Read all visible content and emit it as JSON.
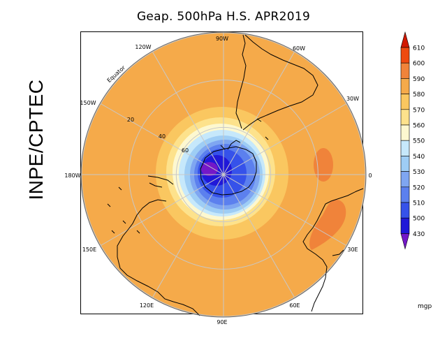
{
  "title": "Geap. 500hPa H.S. APR2019",
  "side_label": "INPE/CPTEC",
  "map": {
    "longitude_labels": [
      "90W",
      "60W",
      "30W",
      "0",
      "30E",
      "60E",
      "90E",
      "120E",
      "150E",
      "180W",
      "150W",
      "120W"
    ],
    "latitude_labels": [
      "20",
      "40",
      "60"
    ],
    "equator_label": "Equator"
  },
  "colorbar": {
    "unit": "mgp",
    "levels": [
      "610",
      "600",
      "590",
      "580",
      "570",
      "560",
      "550",
      "540",
      "530",
      "520",
      "510",
      "500",
      "430"
    ],
    "colors": [
      "#d21800",
      "#ee4a10",
      "#f0833a",
      "#f5aa4a",
      "#fac760",
      "#fde28c",
      "#fdf8d0",
      "#c6e8fb",
      "#9ecdf5",
      "#7fa6f1",
      "#5c80ee",
      "#3652ea",
      "#2018d8",
      "#7418c8"
    ]
  }
}
